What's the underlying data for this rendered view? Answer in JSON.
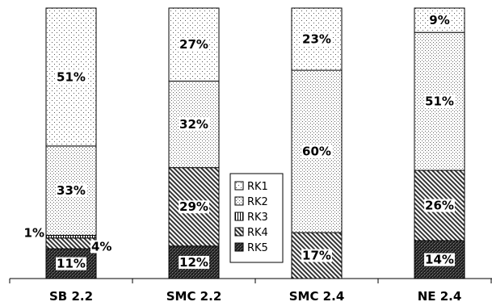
{
  "chart_data": {
    "type": "bar",
    "stacked": true,
    "categories": [
      "SB 2.2",
      "SMC 2.2",
      "SMC 2.4",
      "NE 2.4"
    ],
    "series": [
      {
        "name": "RK5",
        "values": [
          11,
          12,
          0,
          14
        ],
        "labels": [
          "11%",
          "12%",
          "",
          "14%"
        ]
      },
      {
        "name": "RK4",
        "values": [
          4,
          29,
          17,
          26
        ],
        "labels": [
          "4%",
          "29%",
          "17%",
          "26%"
        ]
      },
      {
        "name": "RK3",
        "values": [
          1,
          0,
          0,
          0
        ],
        "labels": [
          "1%",
          "",
          "",
          ""
        ]
      },
      {
        "name": "RK2",
        "values": [
          33,
          32,
          60,
          51
        ],
        "labels": [
          "33%",
          "32%",
          "60%",
          "51%"
        ]
      },
      {
        "name": "RK1",
        "values": [
          51,
          27,
          23,
          9
        ],
        "labels": [
          "51%",
          "27%",
          "23%",
          "9%"
        ]
      }
    ],
    "legend": {
      "position": "center",
      "entries": [
        "RK1",
        "RK2",
        "RK3",
        "RK4",
        "RK5"
      ]
    },
    "ylim": [
      0,
      100
    ],
    "grid": false
  }
}
